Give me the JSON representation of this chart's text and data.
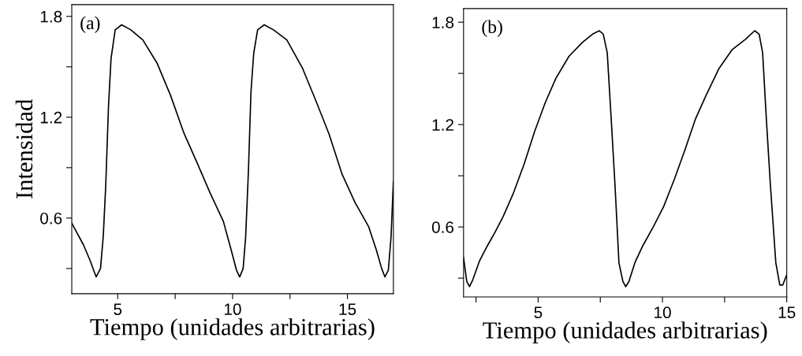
{
  "chart_data": [
    {
      "type": "line",
      "xlabel": "Tiempo (unidades arbitrarias)",
      "ylabel": "Intensidad",
      "annotations": [
        "(a)"
      ],
      "xlim": [
        3,
        17
      ],
      "ylim": [
        0.15,
        1.87
      ],
      "xticks": [
        5,
        {
          "value": 7.5,
          "label": null
        },
        10,
        {
          "value": 12.5,
          "label": null
        },
        15
      ],
      "yticks": [
        {
          "value": 0.3,
          "label": null
        },
        0.6,
        {
          "value": 0.9,
          "label": null
        },
        1.2,
        {
          "value": 1.5,
          "label": null
        },
        1.8
      ],
      "grid": false,
      "legend": false,
      "marker": "none",
      "line_style": "solid",
      "series": [
        {
          "color": "#000000",
          "x": [
            3.0,
            3.51,
            3.79,
            4.06,
            4.25,
            4.37,
            4.48,
            4.6,
            4.71,
            4.89,
            5.17,
            5.57,
            6.09,
            6.72,
            7.3,
            7.87,
            8.45,
            9.02,
            9.6,
            9.94,
            10.17,
            10.31,
            10.46,
            10.57,
            10.69,
            10.8,
            10.92,
            11.09,
            11.38,
            11.78,
            12.36,
            13.05,
            13.62,
            14.2,
            14.77,
            15.34,
            15.92,
            16.26,
            16.49,
            16.63,
            16.78,
            16.9,
            17.0
          ],
          "values": [
            0.57,
            0.44,
            0.35,
            0.25,
            0.3,
            0.49,
            0.8,
            1.27,
            1.55,
            1.72,
            1.75,
            1.72,
            1.66,
            1.52,
            1.33,
            1.11,
            0.93,
            0.75,
            0.58,
            0.41,
            0.29,
            0.25,
            0.3,
            0.49,
            0.88,
            1.35,
            1.58,
            1.72,
            1.75,
            1.72,
            1.66,
            1.49,
            1.3,
            1.1,
            0.86,
            0.69,
            0.55,
            0.41,
            0.3,
            0.25,
            0.29,
            0.49,
            0.82
          ]
        }
      ]
    },
    {
      "type": "line",
      "xlabel": "Tiempo (unidades arbitrarias)",
      "annotations": [
        "(b)"
      ],
      "xlim": [
        2,
        15
      ],
      "ylim": [
        0.19,
        1.88
      ],
      "xticks": [
        {
          "value": 2.5,
          "label": null
        },
        5,
        {
          "value": 7.5,
          "label": null
        },
        10,
        {
          "value": 12.5,
          "label": null
        },
        15
      ],
      "yticks": [
        {
          "value": 0.3,
          "label": null
        },
        0.6,
        {
          "value": 0.9,
          "label": null
        },
        1.2,
        {
          "value": 1.5,
          "label": null
        },
        1.8
      ],
      "grid": false,
      "legend": false,
      "marker": "none",
      "line_style": "solid",
      "series": [
        {
          "color": "#000000",
          "x": [
            2.0,
            2.13,
            2.24,
            2.37,
            2.64,
            2.96,
            3.27,
            3.59,
            4.01,
            4.44,
            4.86,
            5.29,
            5.71,
            6.24,
            6.77,
            7.19,
            7.46,
            7.62,
            7.78,
            7.94,
            8.09,
            8.25,
            8.41,
            8.52,
            8.65,
            8.89,
            9.21,
            9.63,
            10.05,
            10.48,
            10.9,
            11.32,
            11.75,
            12.28,
            12.81,
            13.34,
            13.71,
            13.89,
            14.03,
            14.18,
            14.34,
            14.56,
            14.72,
            14.84,
            15.0
          ],
          "values": [
            0.42,
            0.28,
            0.25,
            0.29,
            0.4,
            0.49,
            0.57,
            0.66,
            0.8,
            0.97,
            1.16,
            1.33,
            1.47,
            1.6,
            1.68,
            1.73,
            1.75,
            1.73,
            1.62,
            1.23,
            0.85,
            0.39,
            0.28,
            0.25,
            0.28,
            0.39,
            0.49,
            0.6,
            0.72,
            0.88,
            1.05,
            1.23,
            1.37,
            1.53,
            1.64,
            1.7,
            1.75,
            1.73,
            1.62,
            1.23,
            0.85,
            0.39,
            0.26,
            0.26,
            0.32
          ]
        }
      ]
    }
  ]
}
